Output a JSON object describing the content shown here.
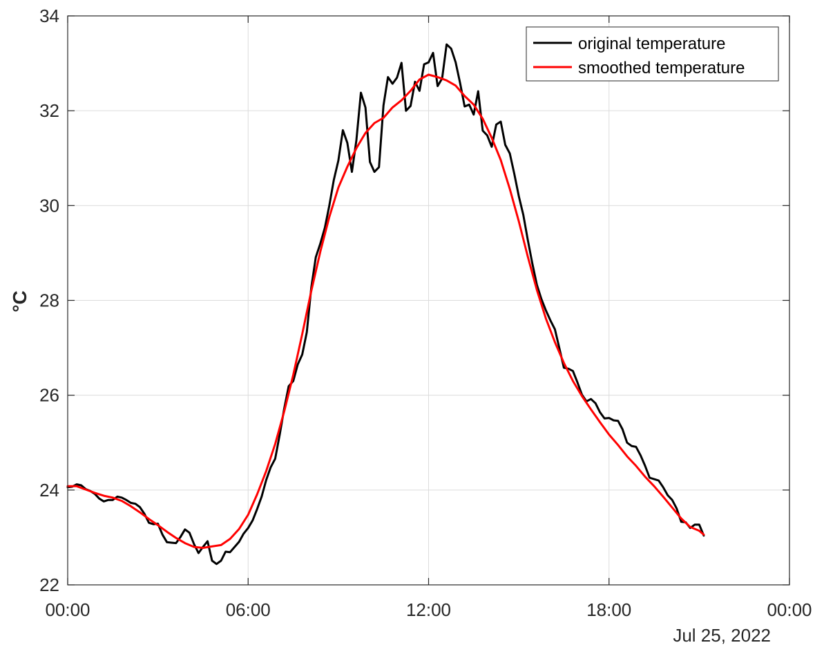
{
  "chart_data": {
    "type": "line",
    "title": "",
    "xlabel": "",
    "ylabel": "°C",
    "date_label": "Jul 25, 2022",
    "xlim": [
      "00:00",
      "24:00"
    ],
    "ylim": [
      22,
      34
    ],
    "x_ticks": [
      {
        "hour": 0,
        "label": "00:00"
      },
      {
        "hour": 6,
        "label": "06:00"
      },
      {
        "hour": 12,
        "label": "12:00"
      },
      {
        "hour": 18,
        "label": "18:00"
      },
      {
        "hour": 24,
        "label": "00:00"
      }
    ],
    "y_ticks": [
      22,
      24,
      26,
      28,
      30,
      32,
      34
    ],
    "grid": true,
    "legend_position": "top-right",
    "series": [
      {
        "name": "original temperature",
        "color": "#000000",
        "points": [
          [
            0.0,
            24.06
          ],
          [
            0.15,
            24.07
          ],
          [
            0.3,
            24.12
          ],
          [
            0.45,
            24.1
          ],
          [
            0.6,
            24.02
          ],
          [
            0.75,
            23.98
          ],
          [
            0.9,
            23.92
          ],
          [
            1.05,
            23.82
          ],
          [
            1.2,
            23.76
          ],
          [
            1.35,
            23.79
          ],
          [
            1.5,
            23.79
          ],
          [
            1.65,
            23.86
          ],
          [
            1.8,
            23.84
          ],
          [
            1.95,
            23.79
          ],
          [
            2.1,
            23.73
          ],
          [
            2.25,
            23.71
          ],
          [
            2.4,
            23.64
          ],
          [
            2.55,
            23.5
          ],
          [
            2.7,
            23.31
          ],
          [
            2.85,
            23.28
          ],
          [
            3.0,
            23.29
          ],
          [
            3.15,
            23.06
          ],
          [
            3.3,
            22.9
          ],
          [
            3.45,
            22.89
          ],
          [
            3.6,
            22.88
          ],
          [
            3.75,
            23.01
          ],
          [
            3.9,
            23.17
          ],
          [
            4.05,
            23.1
          ],
          [
            4.2,
            22.86
          ],
          [
            4.35,
            22.67
          ],
          [
            4.5,
            22.8
          ],
          [
            4.65,
            22.92
          ],
          [
            4.8,
            22.51
          ],
          [
            4.95,
            22.44
          ],
          [
            5.1,
            22.51
          ],
          [
            5.25,
            22.7
          ],
          [
            5.4,
            22.69
          ],
          [
            5.55,
            22.8
          ],
          [
            5.7,
            22.91
          ],
          [
            5.85,
            23.08
          ],
          [
            6.0,
            23.2
          ],
          [
            6.15,
            23.36
          ],
          [
            6.3,
            23.6
          ],
          [
            6.45,
            23.86
          ],
          [
            6.6,
            24.21
          ],
          [
            6.75,
            24.48
          ],
          [
            6.9,
            24.66
          ],
          [
            7.05,
            25.17
          ],
          [
            7.2,
            25.72
          ],
          [
            7.35,
            26.19
          ],
          [
            7.5,
            26.3
          ],
          [
            7.65,
            26.65
          ],
          [
            7.8,
            26.86
          ],
          [
            7.95,
            27.33
          ],
          [
            8.1,
            28.27
          ],
          [
            8.25,
            28.91
          ],
          [
            8.4,
            29.2
          ],
          [
            8.55,
            29.53
          ],
          [
            8.7,
            30.0
          ],
          [
            8.85,
            30.54
          ],
          [
            9.0,
            30.95
          ],
          [
            9.15,
            31.59
          ],
          [
            9.3,
            31.32
          ],
          [
            9.45,
            30.71
          ],
          [
            9.6,
            31.38
          ],
          [
            9.75,
            32.38
          ],
          [
            9.9,
            32.07
          ],
          [
            10.05,
            30.92
          ],
          [
            10.2,
            30.71
          ],
          [
            10.35,
            30.81
          ],
          [
            10.5,
            32.11
          ],
          [
            10.65,
            32.71
          ],
          [
            10.8,
            32.57
          ],
          [
            10.95,
            32.7
          ],
          [
            11.1,
            33.01
          ],
          [
            11.25,
            32.0
          ],
          [
            11.4,
            32.1
          ],
          [
            11.55,
            32.61
          ],
          [
            11.7,
            32.42
          ],
          [
            11.85,
            32.98
          ],
          [
            12.0,
            33.02
          ],
          [
            12.15,
            33.22
          ],
          [
            12.3,
            32.52
          ],
          [
            12.45,
            32.68
          ],
          [
            12.6,
            33.4
          ],
          [
            12.75,
            33.31
          ],
          [
            12.9,
            33.02
          ],
          [
            13.05,
            32.58
          ],
          [
            13.2,
            32.09
          ],
          [
            13.35,
            32.13
          ],
          [
            13.5,
            31.92
          ],
          [
            13.65,
            32.41
          ],
          [
            13.8,
            31.58
          ],
          [
            13.95,
            31.48
          ],
          [
            14.1,
            31.24
          ],
          [
            14.25,
            31.71
          ],
          [
            14.4,
            31.77
          ],
          [
            14.55,
            31.28
          ],
          [
            14.7,
            31.1
          ],
          [
            14.85,
            30.67
          ],
          [
            15.0,
            30.2
          ],
          [
            15.15,
            29.8
          ],
          [
            15.3,
            29.27
          ],
          [
            15.45,
            28.78
          ],
          [
            15.6,
            28.33
          ],
          [
            15.75,
            28.03
          ],
          [
            15.9,
            27.79
          ],
          [
            16.05,
            27.58
          ],
          [
            16.2,
            27.39
          ],
          [
            16.35,
            26.99
          ],
          [
            16.5,
            26.58
          ],
          [
            16.65,
            26.56
          ],
          [
            16.8,
            26.51
          ],
          [
            16.95,
            26.27
          ],
          [
            17.1,
            26.01
          ],
          [
            17.25,
            25.87
          ],
          [
            17.4,
            25.92
          ],
          [
            17.55,
            25.83
          ],
          [
            17.7,
            25.64
          ],
          [
            17.85,
            25.51
          ],
          [
            18.0,
            25.52
          ],
          [
            18.15,
            25.47
          ],
          [
            18.3,
            25.46
          ],
          [
            18.45,
            25.28
          ],
          [
            18.6,
            25.0
          ],
          [
            18.75,
            24.93
          ],
          [
            18.9,
            24.91
          ],
          [
            19.05,
            24.73
          ],
          [
            19.2,
            24.51
          ],
          [
            19.35,
            24.26
          ],
          [
            19.5,
            24.23
          ],
          [
            19.65,
            24.2
          ],
          [
            19.8,
            24.06
          ],
          [
            19.95,
            23.89
          ],
          [
            20.1,
            23.79
          ],
          [
            20.25,
            23.61
          ],
          [
            20.4,
            23.33
          ],
          [
            20.55,
            23.32
          ],
          [
            20.7,
            23.2
          ],
          [
            20.85,
            23.27
          ],
          [
            21.0,
            23.27
          ],
          [
            21.15,
            23.04
          ]
        ]
      },
      {
        "name": "smoothed temperature",
        "color": "#ff0000",
        "points": [
          [
            0.0,
            24.08
          ],
          [
            0.3,
            24.08
          ],
          [
            0.6,
            24.01
          ],
          [
            0.9,
            23.94
          ],
          [
            1.2,
            23.88
          ],
          [
            1.5,
            23.84
          ],
          [
            1.8,
            23.77
          ],
          [
            2.1,
            23.66
          ],
          [
            2.4,
            23.53
          ],
          [
            2.7,
            23.39
          ],
          [
            3.0,
            23.26
          ],
          [
            3.3,
            23.12
          ],
          [
            3.6,
            22.99
          ],
          [
            3.9,
            22.88
          ],
          [
            4.2,
            22.8
          ],
          [
            4.5,
            22.78
          ],
          [
            4.8,
            22.81
          ],
          [
            5.1,
            22.84
          ],
          [
            5.4,
            22.97
          ],
          [
            5.7,
            23.18
          ],
          [
            6.0,
            23.48
          ],
          [
            6.3,
            23.91
          ],
          [
            6.6,
            24.4
          ],
          [
            6.9,
            24.97
          ],
          [
            7.2,
            25.66
          ],
          [
            7.5,
            26.43
          ],
          [
            7.8,
            27.29
          ],
          [
            8.1,
            28.2
          ],
          [
            8.4,
            29.03
          ],
          [
            8.7,
            29.76
          ],
          [
            9.0,
            30.38
          ],
          [
            9.3,
            30.82
          ],
          [
            9.6,
            31.21
          ],
          [
            9.9,
            31.53
          ],
          [
            10.2,
            31.74
          ],
          [
            10.5,
            31.85
          ],
          [
            10.8,
            32.07
          ],
          [
            11.1,
            32.22
          ],
          [
            11.4,
            32.42
          ],
          [
            11.7,
            32.66
          ],
          [
            12.0,
            32.76
          ],
          [
            12.3,
            32.71
          ],
          [
            12.6,
            32.64
          ],
          [
            12.9,
            32.53
          ],
          [
            13.2,
            32.31
          ],
          [
            13.5,
            32.13
          ],
          [
            13.8,
            31.83
          ],
          [
            14.1,
            31.43
          ],
          [
            14.4,
            30.96
          ],
          [
            14.7,
            30.35
          ],
          [
            15.0,
            29.67
          ],
          [
            15.3,
            28.92
          ],
          [
            15.6,
            28.22
          ],
          [
            15.9,
            27.62
          ],
          [
            16.2,
            27.12
          ],
          [
            16.5,
            26.68
          ],
          [
            16.8,
            26.3
          ],
          [
            17.1,
            25.98
          ],
          [
            17.4,
            25.7
          ],
          [
            17.7,
            25.43
          ],
          [
            18.0,
            25.17
          ],
          [
            18.3,
            24.95
          ],
          [
            18.6,
            24.71
          ],
          [
            18.9,
            24.51
          ],
          [
            19.2,
            24.28
          ],
          [
            19.5,
            24.08
          ],
          [
            19.8,
            23.86
          ],
          [
            20.1,
            23.63
          ],
          [
            20.4,
            23.4
          ],
          [
            20.7,
            23.22
          ],
          [
            21.0,
            23.14
          ],
          [
            21.15,
            23.06
          ]
        ]
      }
    ]
  }
}
